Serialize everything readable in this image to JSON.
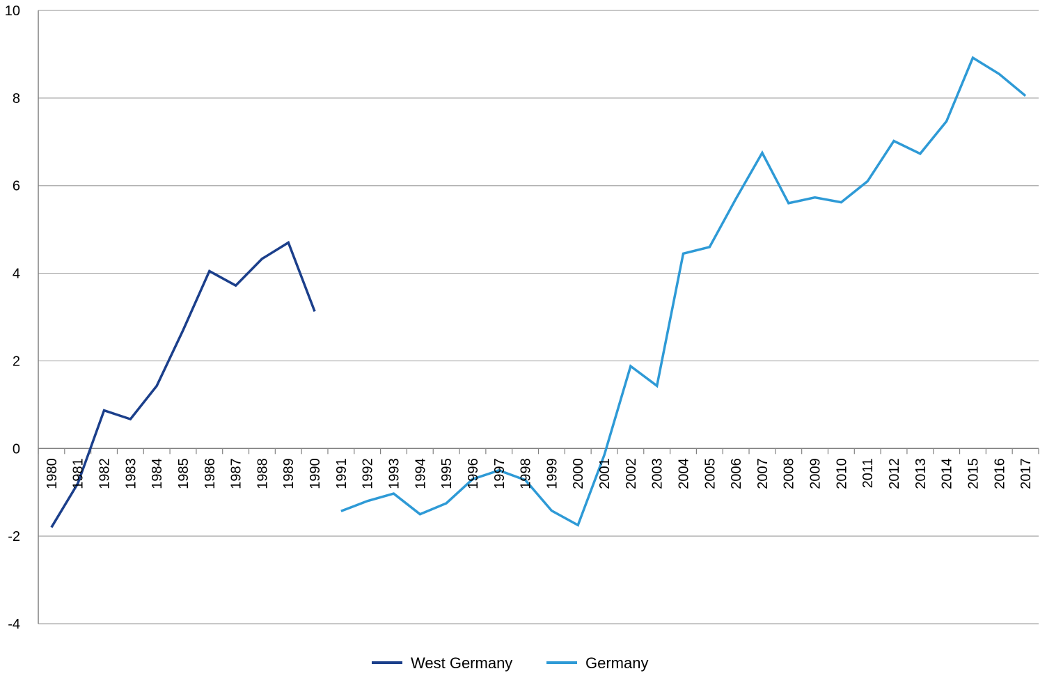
{
  "chart_data": {
    "type": "line",
    "title": "",
    "xlabel": "",
    "ylabel": "",
    "ylim": [
      -4,
      10
    ],
    "yticks": [
      -4,
      -2,
      0,
      2,
      4,
      6,
      8,
      10
    ],
    "grid": "horizontal",
    "legend_placement": "bottom-center",
    "categories": [
      "1980",
      "1981",
      "1982",
      "1983",
      "1984",
      "1985",
      "1986",
      "1987",
      "1988",
      "1989",
      "1990",
      "1991",
      "1992",
      "1993",
      "1994",
      "1995",
      "1996",
      "1997",
      "1998",
      "1999",
      "2000",
      "2001",
      "2002",
      "2003",
      "2004",
      "2005",
      "2006",
      "2007",
      "2008",
      "2009",
      "2010",
      "2011",
      "2012",
      "2013",
      "2014",
      "2015",
      "2016",
      "2017"
    ],
    "series": [
      {
        "name": "West Germany",
        "color": "#1b3f8b",
        "values": [
          -1.8,
          -0.8,
          0.87,
          0.67,
          1.43,
          2.7,
          4.05,
          3.72,
          4.33,
          4.7,
          3.13,
          null,
          null,
          null,
          null,
          null,
          null,
          null,
          null,
          null,
          null,
          null,
          null,
          null,
          null,
          null,
          null,
          null,
          null,
          null,
          null,
          null,
          null,
          null,
          null,
          null,
          null,
          null
        ]
      },
      {
        "name": "Germany",
        "color": "#2e9ad6",
        "values": [
          null,
          null,
          null,
          null,
          null,
          null,
          null,
          null,
          null,
          null,
          null,
          -1.43,
          -1.2,
          -1.03,
          -1.5,
          -1.25,
          -0.7,
          -0.5,
          -0.72,
          -1.42,
          -1.75,
          -0.15,
          1.88,
          1.43,
          4.45,
          4.6,
          5.7,
          6.75,
          5.6,
          5.73,
          5.62,
          6.1,
          7.02,
          6.73,
          7.47,
          8.92,
          8.55,
          8.05
        ]
      }
    ]
  }
}
